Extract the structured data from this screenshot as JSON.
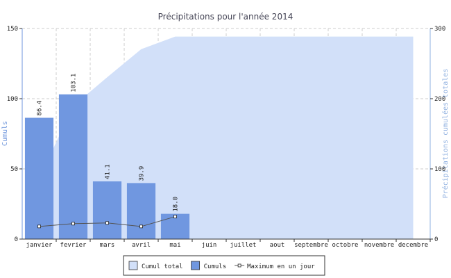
{
  "chart_data": {
    "type": "bar",
    "title": "Précipitations pour l'année 2014",
    "y_label": "Cumuls",
    "y2_label": "Précipitations cumulées totales",
    "categories": [
      "janvier",
      "fevrier",
      "mars",
      "avril",
      "mai",
      "juin",
      "juillet",
      "aout",
      "septembre",
      "octobre",
      "novembre",
      "decembre"
    ],
    "series": [
      {
        "name": "Cumul total",
        "type": "area",
        "axis": "y2",
        "color": "#d2e0f9",
        "values": [
          86.4,
          189.5,
          230.6,
          270.5,
          288.5,
          288.5,
          288.5,
          288.5,
          288.5,
          288.5,
          288.5,
          288.5
        ]
      },
      {
        "name": "Cumuls",
        "type": "bar",
        "color": "#7097e0",
        "values": [
          86.4,
          103.1,
          41.1,
          39.9,
          18.0,
          null,
          null,
          null,
          null,
          null,
          null,
          null
        ],
        "value_labels": [
          "86.4",
          "103.1",
          "41.1",
          "39.9",
          "18.0",
          null,
          null,
          null,
          null,
          null,
          null,
          null
        ]
      },
      {
        "name": "Maximum en un jour",
        "type": "line",
        "color": "#555555",
        "values": [
          9,
          11,
          11.5,
          9,
          16,
          null,
          null,
          null,
          null,
          null,
          null,
          null
        ]
      }
    ],
    "ylim": [
      0,
      150
    ],
    "yticks": [
      0,
      50,
      100,
      150
    ],
    "y2lim": [
      0,
      300
    ],
    "y2ticks": [
      0,
      100,
      200,
      300
    ],
    "grid": true,
    "legend": "bottom"
  }
}
